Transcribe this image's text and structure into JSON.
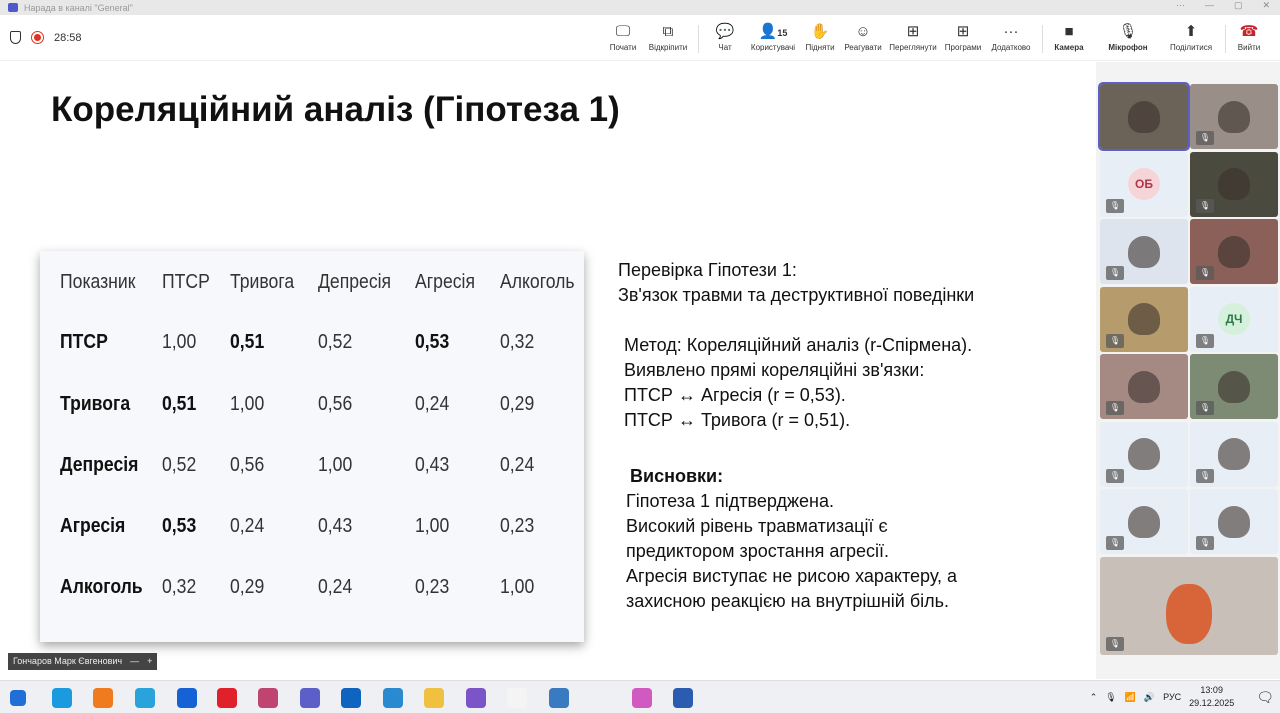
{
  "window": {
    "title": "Нарада в каналі \"General\""
  },
  "meeting": {
    "timer": "28:58"
  },
  "toolbar": [
    {
      "label": "Почати",
      "icon": "share-screen-icon"
    },
    {
      "label": "Відкріпити",
      "icon": "popout-icon"
    },
    {
      "label": "Чат",
      "icon": "chat-icon"
    },
    {
      "label": "Користувачі",
      "icon": "people-icon",
      "count": "15"
    },
    {
      "label": "Підняти",
      "icon": "raise-hand-icon"
    },
    {
      "label": "Реагувати",
      "icon": "react-icon"
    },
    {
      "label": "Переглянути",
      "icon": "view-icon"
    },
    {
      "label": "Програми",
      "icon": "apps-icon"
    },
    {
      "label": "Додатково",
      "icon": "more-icon"
    },
    {
      "label": "Камера",
      "icon": "camera-icon"
    },
    {
      "label": "Мікрофон",
      "icon": "mic-off-icon"
    },
    {
      "label": "Поділитися",
      "icon": "share-icon"
    },
    {
      "label": "Вийти",
      "icon": "leave-icon"
    }
  ],
  "slide": {
    "title": "Кореляційний аналіз (Гіпотеза 1)",
    "table": {
      "headers": [
        "Показник",
        "ПТСР",
        "Тривога",
        "Депресія",
        "Агресія",
        "Алкоголь"
      ],
      "rows": [
        [
          "ПТСР",
          "1,00",
          "0,51",
          "0,52",
          "0,53",
          "0,32"
        ],
        [
          "Тривога",
          "0,51",
          "1,00",
          "0,56",
          "0,24",
          "0,29"
        ],
        [
          "Депресія",
          "0,52",
          "0,56",
          "1,00",
          "0,43",
          "0,24"
        ],
        [
          "Агресія",
          "0,53",
          "0,24",
          "0,43",
          "1,00",
          "0,23"
        ],
        [
          "Алкоголь",
          "0,32",
          "0,29",
          "0,24",
          "0,23",
          "1,00"
        ]
      ]
    },
    "check": [
      "Перевірка Гіпотези 1:",
      "Зв'язок травми та деструктивної поведінки"
    ],
    "method": [
      "Метод: Кореляційний аналіз (r-Спірмена).",
      "Виявлено прямі кореляційні зв'язки:",
      "ПТСР ↔ Агресія (r = 0,53).",
      "ПТСР ↔ Тривога (r = 0,51)."
    ],
    "conclusions_title": "Висновки:",
    "conclusions": [
      "Гіпотеза 1 підтверджена.",
      "Високий рівень травматизації є",
      "предиктором зростання агресії.",
      "Агресія виступає не рисою характеру, а",
      "захисною реакцією на внутрішній біль."
    ]
  },
  "presenter_name": "Гончаров Марк Євгенович",
  "participants": [
    {
      "initials": "",
      "bg": "#6b6258"
    },
    {
      "initials": "",
      "bg": "#9a8f88"
    },
    {
      "initials": "ОБ",
      "bg": "#e8eef5",
      "av": "#f6d5d8",
      "fg": "#b0364a"
    },
    {
      "initials": "",
      "bg": "#4a4a3e"
    },
    {
      "initials": "",
      "bg": "#dde4ee"
    },
    {
      "initials": "",
      "bg": "#8a6058"
    },
    {
      "initials": "",
      "bg": "#b69c6c"
    },
    {
      "initials": "ДЧ",
      "bg": "#e8eef5",
      "av": "#d5f0dc",
      "fg": "#2e7a47"
    },
    {
      "initials": "",
      "bg": "#a58a84"
    },
    {
      "initials": "",
      "bg": "#7d8a74"
    },
    {
      "initials": "",
      "bg": "#e8eef5"
    },
    {
      "initials": "",
      "bg": "#e8eef5"
    },
    {
      "initials": "",
      "bg": "#e8eef5"
    },
    {
      "initials": "",
      "bg": "#e8eef5"
    }
  ],
  "tray": {
    "language": "РУС",
    "time": "13:09",
    "date": "29.12.2025",
    "notifications": "1"
  }
}
